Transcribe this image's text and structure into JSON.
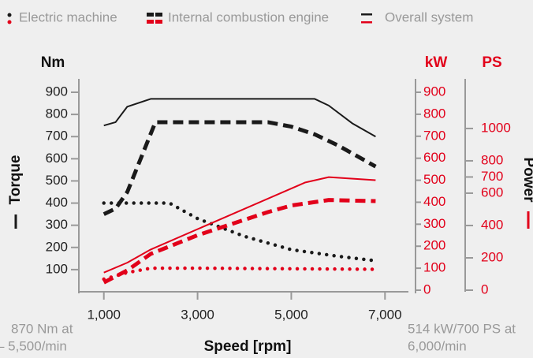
{
  "chart_data": {
    "type": "line",
    "legend": "top",
    "torque_color": "#1a1a1a",
    "power_color": "#e2001a",
    "xlabel": "Speed [rpm]",
    "ylabel": "Torque",
    "y2label": "Power",
    "yunit": "Nm",
    "y2unit": "kW",
    "y3unit": "PS",
    "xlim": [
      500,
      7500
    ],
    "xticks": [
      {
        "value": 1000,
        "label": "1,000"
      },
      {
        "value": 3000,
        "label": "3,000"
      },
      {
        "value": 5000,
        "label": "5,000"
      },
      {
        "value": 7000,
        "label": "7,000"
      }
    ],
    "ylim": [
      0,
      900
    ],
    "yticks": [
      100,
      200,
      300,
      400,
      500,
      600,
      700,
      800,
      900
    ],
    "y2lim": [
      0,
      900
    ],
    "y2ticks": [
      0,
      100,
      200,
      300,
      400,
      500,
      600,
      700,
      800,
      900
    ],
    "y3lim": [
      0,
      1224
    ],
    "y3ticks": [
      0,
      200,
      400,
      600,
      700,
      800,
      1000
    ],
    "series": [
      {
        "name": "Electric machine",
        "dash": "dotted",
        "torque": {
          "x": [
            1000,
            1500,
            2400,
            3000,
            4000,
            5000,
            6000,
            6800
          ],
          "values": [
            400,
            400,
            400,
            330,
            250,
            190,
            160,
            140
          ]
        },
        "power": {
          "x": [
            1000,
            1500,
            2000,
            3000,
            6800
          ],
          "values": [
            50,
            80,
            100,
            100,
            95
          ]
        }
      },
      {
        "name": "Internal combustion engine",
        "dash": "dashed",
        "torque": {
          "x": [
            1000,
            1250,
            1500,
            2100,
            4500,
            5000,
            5500,
            6000,
            6800
          ],
          "values": [
            350,
            375,
            450,
            765,
            765,
            745,
            710,
            660,
            565
          ]
        },
        "power": {
          "x": [
            1000,
            1500,
            2000,
            3000,
            4500,
            5000,
            5800,
            6800
          ],
          "values": [
            35,
            90,
            165,
            250,
            355,
            385,
            410,
            405
          ]
        }
      },
      {
        "name": "Overall system",
        "dash": "solid",
        "torque": {
          "x": [
            1000,
            1250,
            1500,
            2000,
            5500,
            5800,
            6300,
            6800
          ],
          "values": [
            750,
            765,
            835,
            870,
            870,
            840,
            760,
            700
          ]
        },
        "power": {
          "x": [
            1000,
            1500,
            2000,
            5300,
            5800,
            6800
          ],
          "values": [
            80,
            125,
            185,
            490,
            514,
            500
          ]
        }
      }
    ],
    "annotations": [
      "870 Nm at",
      "– 5,500/min",
      "514 kW/700 PS at",
      "6,000/min"
    ]
  }
}
